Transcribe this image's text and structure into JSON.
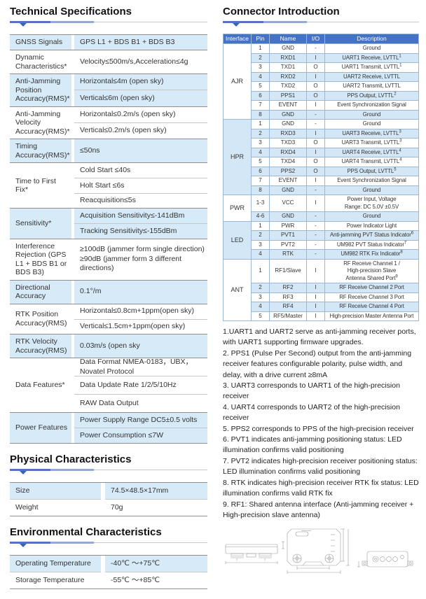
{
  "colors": {
    "accent": "#4472c4",
    "stripe": "#d3e7f6",
    "stripe-left": "#d7eaf8",
    "rule-blue": "#4f74c0",
    "rule-blue-light": "#93a9da"
  },
  "sections": {
    "tech_title": "Technical Specifications",
    "connector_title": "Connector Introduction",
    "physical_title": "Physical Characteristics",
    "environmental_title": "Environmental Characteristics"
  },
  "tech_specs": {
    "groups": [
      {
        "label": "GNSS Signals",
        "shade": true,
        "values": [
          "GPS L1 + BDS B1 + BDS B3"
        ]
      },
      {
        "label": "Dynamic Characteristics*",
        "shade": false,
        "values": [
          "Velocity≤500m/s,Acceleration≤4g"
        ]
      },
      {
        "label": "Anti-Jamming Position Accuracy(RMS)*",
        "shade": true,
        "values": [
          "Horizontal≤4m (open sky)",
          "Vertical≤6m (open sky)"
        ]
      },
      {
        "label": "Anti-Jamming Velocity Accuracy(RMS)*",
        "shade": false,
        "values": [
          "Horizontal≤0.2m/s (open sky)",
          "Vertical≤0.2m/s (open sky)"
        ]
      },
      {
        "label": "Timing Accuracy(RMS)*",
        "shade": true,
        "values": [
          "≤50ns"
        ]
      },
      {
        "label": "Time to First Fix*",
        "shade": false,
        "values": [
          "Cold Start ≤40s",
          "Holt Start ≤6s",
          "Reacquisition≤5s"
        ]
      },
      {
        "label": "Sensitivity*",
        "shade": true,
        "values": [
          "Acquisition Sensitivity≤-141dBm",
          "Tracking Sensitivity≤-155dBm"
        ]
      },
      {
        "label": "Interference Rejection (GPS L1 + BDS B1 or BDS B3)",
        "shade": false,
        "values": [
          "≥100dB (jammer form single direction)\n≥90dB (jammer form 3  different directions)"
        ]
      },
      {
        "label": "Directional Accuracy",
        "shade": true,
        "values": [
          "0.1°/m"
        ]
      },
      {
        "label": "RTK Position Accuracy(RMS)",
        "shade": false,
        "values": [
          "Horizontal≤0.8cm+1ppm(open sky)",
          "Vertical≤1.5cm+1ppm(open sky)"
        ]
      },
      {
        "label": "RTK Velocity Accuracy(RMS)",
        "shade": true,
        "values": [
          "0.03m/s (open sky"
        ]
      },
      {
        "label": "Data Features*",
        "shade": false,
        "values": [
          "Data Format NMEA-0183，UBX，Novatel Protocol",
          "Data Update Rate 1/2/5/10Hz",
          "RAW Data Output"
        ]
      },
      {
        "label": "Power Features",
        "shade": true,
        "values": [
          "Power Supply Range DC5±0.5 volts",
          "Power Consumption ≤7W"
        ]
      }
    ]
  },
  "physical": {
    "rows": [
      {
        "label": "Size",
        "value": "74.5×48.5×17mm",
        "shade": true
      },
      {
        "label": "Weight",
        "value": "70g",
        "shade": false
      }
    ]
  },
  "environmental": {
    "rows": [
      {
        "label": "Operating Temperature",
        "value": "-40℃ ～+75℃",
        "shade": true
      },
      {
        "label": "Storage Temperature",
        "value": "-55℃ ～+85℃",
        "shade": false
      }
    ]
  },
  "connector": {
    "headers": [
      "Interface",
      "Pin",
      "Name",
      "I/O",
      "Description"
    ],
    "groups": [
      {
        "interface": "AJR",
        "shade": false,
        "rows": [
          {
            "pin": "1",
            "name": "GND",
            "io": "-",
            "desc": "Ground"
          },
          {
            "pin": "2",
            "name": "RXD1",
            "io": "I",
            "desc": "UART1 Receive, LVTTL",
            "sup": "1"
          },
          {
            "pin": "3",
            "name": "TXD1",
            "io": "O",
            "desc": "UART1 Transmit,  LVTTL",
            "sup": "1"
          },
          {
            "pin": "4",
            "name": "RXD2",
            "io": "I",
            "desc": "UART2 Receive, LVTTL"
          },
          {
            "pin": "5",
            "name": "TXD2",
            "io": "O",
            "desc": "UART2 Transmit, LVTTL"
          },
          {
            "pin": "6",
            "name": "PPS1",
            "io": "O",
            "desc": "PPS Output, LVTTL",
            "sup": "2"
          },
          {
            "pin": "7",
            "name": "EVENT",
            "io": "I",
            "desc": "Event Synchronization Signal"
          },
          {
            "pin": "8",
            "name": "GND",
            "io": "-",
            "desc": "Ground"
          }
        ]
      },
      {
        "interface": "HPR",
        "shade": true,
        "rows": [
          {
            "pin": "1",
            "name": "GND",
            "io": "-",
            "desc": "Ground"
          },
          {
            "pin": "2",
            "name": "RXD3",
            "io": "I",
            "desc": "UART3 Receive, LVTTL",
            "sup": "3"
          },
          {
            "pin": "3",
            "name": "TXD3",
            "io": "O",
            "desc": "UART3 Transmit, LVTTL",
            "sup": "3"
          },
          {
            "pin": "4",
            "name": "RXD4",
            "io": "I",
            "desc": "UART4 Receive, LVTTL",
            "sup": "4"
          },
          {
            "pin": "5",
            "name": "TXD4",
            "io": "O",
            "desc": "UART4 Transmit, LVTTL",
            "sup": "4"
          },
          {
            "pin": "6",
            "name": "PPS2",
            "io": "O",
            "desc": "PPS Output, LVTTL",
            "sup": "5"
          },
          {
            "pin": "7",
            "name": "EVENT",
            "io": "I",
            "desc": "Event Synchronization Signal"
          },
          {
            "pin": "8",
            "name": "GND",
            "io": "-",
            "desc": "Ground"
          }
        ]
      },
      {
        "interface": "PWR",
        "shade": false,
        "rows": [
          {
            "pin": "1-3",
            "name": "VCC",
            "io": "I",
            "desc": "Power Input, Voltage\nRange: DC 5.0V ±0.5V"
          },
          {
            "pin": "4-6",
            "name": "GND",
            "io": "-",
            "desc": "Ground"
          }
        ]
      },
      {
        "interface": "LED",
        "shade": true,
        "rows": [
          {
            "pin": "1",
            "name": "PWR",
            "io": "-",
            "desc": "Power Indicator Light"
          },
          {
            "pin": "2",
            "name": "PVT1",
            "io": "-",
            "desc": "Anti-jamming PVT Status Indicator",
            "sup": "6"
          },
          {
            "pin": "3",
            "name": "PVT2",
            "io": "-",
            "desc": "UM982 PVT Status Indicator",
            "sup": "7"
          },
          {
            "pin": "4",
            "name": "RTK",
            "io": "-",
            "desc": "UM982 RTK Fix Indicator",
            "sup": "8"
          }
        ]
      },
      {
        "interface": "ANT",
        "shade": false,
        "rows": [
          {
            "pin": "1",
            "name": "RF1/Slave",
            "io": "I",
            "desc": "RF Receive Channel 1 /\nHigh-precision Slave\nAntenna Shared Port",
            "sup": "9"
          },
          {
            "pin": "2",
            "name": "RF2",
            "io": "I",
            "desc": "RF Receive Channel 2 Port"
          },
          {
            "pin": "3",
            "name": "RF3",
            "io": "I",
            "desc": "RF Receive Channel 3 Port"
          },
          {
            "pin": "4",
            "name": "RF4",
            "io": "I",
            "desc": "RF Receive Channel 4 Port"
          },
          {
            "pin": "5",
            "name": "RF5/Master",
            "io": "I",
            "desc": "High-precision Master Antenna Port"
          }
        ]
      }
    ]
  },
  "footnotes": [
    "1.UART1 and UART2 serve as anti-jamming receiver ports, with UART1 supporting firmware upgrades.",
    "2. PPS1 (Pulse Per Second) output from the anti-jamming receiver features configurable polarity, pulse width, and delay, with a drive current ≥8mA",
    "3. UART3 corresponds to UART1 of the high-precision receiver",
    "4. UART4 corresponds to UART2 of the high-precision receiver",
    "5. PPS2 corresponds to PPS of the high-precision receiver",
    "6. PVT1 indicates anti-jamming positioning status: LED illumination confirms valid positioning",
    "7. PVT2 indicates high-precision receiver positioning status: LED illumination confirms valid positioning",
    "8. RTK indicates high-precision receiver RTK fix status: LED illumination confirms valid RTK fix",
    "9. RF1: Shared antenna interface (Anti-jamming receiver + High-precision slave antenna)"
  ]
}
